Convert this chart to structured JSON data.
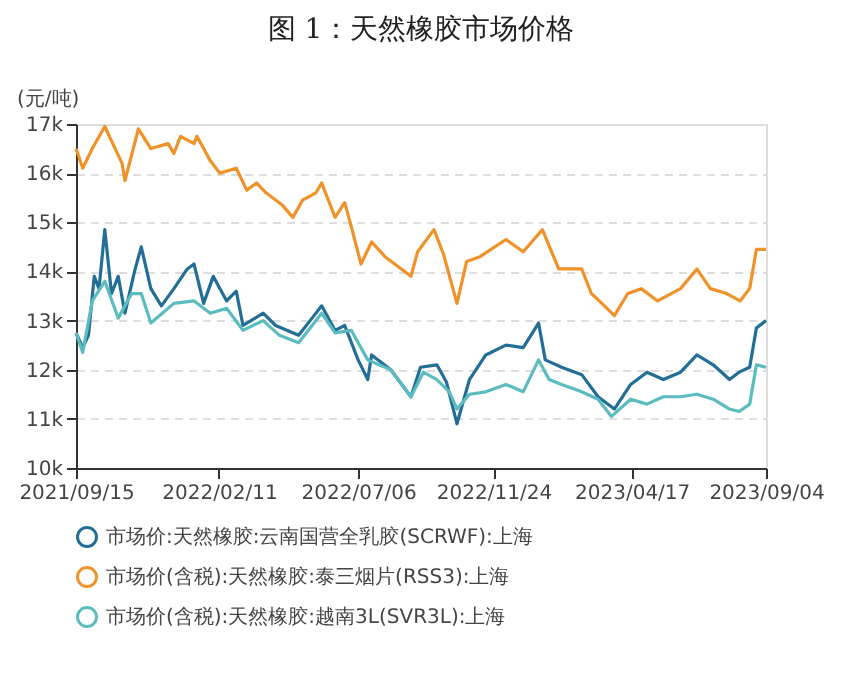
{
  "chart_data": {
    "type": "line",
    "title": "图 1：天然橡胶市场价格",
    "ylabel": "(元/吨)",
    "xlim": [
      "2021-09-15",
      "2023-09-04"
    ],
    "xticks": [
      {
        "value": "2021-09-15",
        "label": "2021/09/15"
      },
      {
        "value": "2022-02-11",
        "label": "2022/02/11"
      },
      {
        "value": "2022-07-06",
        "label": "2022/07/06"
      },
      {
        "value": "2022-11-24",
        "label": "2022/11/24"
      },
      {
        "value": "2023-04-17",
        "label": "2023/04/17"
      },
      {
        "value": "2023-09-04",
        "label": "2023/09/04"
      }
    ],
    "ylim": [
      10000,
      17000
    ],
    "yticks": [
      {
        "value": 10000,
        "label": "10k"
      },
      {
        "value": 11000,
        "label": "11k"
      },
      {
        "value": 12000,
        "label": "12k"
      },
      {
        "value": 13000,
        "label": "13k"
      },
      {
        "value": 14000,
        "label": "14k"
      },
      {
        "value": 15000,
        "label": "15k"
      },
      {
        "value": 16000,
        "label": "16k"
      },
      {
        "value": 17000,
        "label": "17k"
      }
    ],
    "grid": "y",
    "legend": "bottom",
    "marker": "none",
    "line_style": "solid",
    "series": [
      {
        "name": "市场价:天然橡胶:云南国营全乳胶(SCRWF):上海",
        "color": "#236e96",
        "x": [
          "2021-09-15",
          "2021-09-22",
          "2021-09-28",
          "2021-10-04",
          "2021-10-09",
          "2021-10-15",
          "2021-10-22",
          "2021-10-29",
          "2021-11-05",
          "2021-11-15",
          "2021-11-22",
          "2021-12-02",
          "2021-12-13",
          "2021-12-26",
          "2022-01-09",
          "2022-01-16",
          "2022-01-26",
          "2022-02-05",
          "2022-02-19",
          "2022-03-01",
          "2022-03-08",
          "2022-03-29",
          "2022-04-11",
          "2022-05-05",
          "2022-05-19",
          "2022-05-29",
          "2022-06-12",
          "2022-06-22",
          "2022-07-06",
          "2022-07-16",
          "2022-07-20",
          "2022-08-09",
          "2022-08-30",
          "2022-09-09",
          "2022-09-26",
          "2022-10-06",
          "2022-10-17",
          "2022-10-30",
          "2022-11-16",
          "2022-12-07",
          "2022-12-25",
          "2023-01-10",
          "2023-01-17",
          "2023-02-03",
          "2023-02-24",
          "2023-03-13",
          "2023-03-30",
          "2023-04-16",
          "2023-05-03",
          "2023-05-20",
          "2023-06-07",
          "2023-06-24",
          "2023-07-11",
          "2023-07-28",
          "2023-08-07",
          "2023-08-18",
          "2023-08-25",
          "2023-09-04"
        ],
        "values": [
          12750,
          12450,
          12700,
          13900,
          13650,
          14850,
          13550,
          13900,
          13150,
          14000,
          14500,
          13650,
          13300,
          13650,
          14050,
          14150,
          13350,
          13900,
          13400,
          13600,
          12900,
          13150,
          12900,
          12700,
          13050,
          13300,
          12800,
          12900,
          12200,
          11800,
          12300,
          12000,
          11450,
          12050,
          12100,
          11750,
          10900,
          11800,
          12300,
          12500,
          12450,
          12950,
          12200,
          12050,
          11900,
          11450,
          11200,
          11700,
          11950,
          11800,
          11950,
          12300,
          12100,
          11800,
          11950,
          12050,
          12850,
          13000
        ]
      },
      {
        "name": "市场价(含税):天然橡胶:泰三烟片(RSS3):上海",
        "color": "#f0922a",
        "x": [
          "2021-09-15",
          "2021-09-22",
          "2021-10-02",
          "2021-10-15",
          "2021-11-02",
          "2021-11-05",
          "2021-11-19",
          "2021-12-02",
          "2021-12-20",
          "2021-12-26",
          "2022-01-02",
          "2022-01-16",
          "2022-01-19",
          "2022-02-02",
          "2022-02-12",
          "2022-03-01",
          "2022-03-12",
          "2022-03-22",
          "2022-04-01",
          "2022-04-18",
          "2022-04-29",
          "2022-05-09",
          "2022-05-23",
          "2022-05-29",
          "2022-06-12",
          "2022-06-22",
          "2022-06-29",
          "2022-07-09",
          "2022-07-20",
          "2022-08-03",
          "2022-08-30",
          "2022-09-06",
          "2022-09-23",
          "2022-10-03",
          "2022-10-17",
          "2022-10-27",
          "2022-11-10",
          "2022-12-07",
          "2022-12-25",
          "2023-01-14",
          "2023-01-31",
          "2023-02-24",
          "2023-03-06",
          "2023-03-17",
          "2023-03-30",
          "2023-04-13",
          "2023-04-27",
          "2023-05-14",
          "2023-06-07",
          "2023-06-24",
          "2023-07-08",
          "2023-07-25",
          "2023-08-08",
          "2023-08-18",
          "2023-08-25",
          "2023-09-04"
        ],
        "values": [
          16500,
          16100,
          16500,
          16950,
          16200,
          15850,
          16900,
          16500,
          16600,
          16400,
          16750,
          16600,
          16750,
          16250,
          16000,
          16100,
          15650,
          15800,
          15600,
          15350,
          15100,
          15450,
          15600,
          15800,
          15100,
          15400,
          14900,
          14150,
          14600,
          14300,
          13900,
          14400,
          14850,
          14350,
          13350,
          14200,
          14300,
          14650,
          14400,
          14850,
          14050,
          14050,
          13550,
          13350,
          13100,
          13550,
          13650,
          13400,
          13650,
          14050,
          13650,
          13550,
          13400,
          13650,
          14450,
          14450
        ]
      },
      {
        "name": "市场价(含税):天然橡胶:越南3L(SVR3L):上海",
        "color": "#5bbcbf",
        "x": [
          "2021-09-15",
          "2021-09-22",
          "2021-10-02",
          "2021-10-15",
          "2021-10-29",
          "2021-11-12",
          "2021-11-22",
          "2021-12-02",
          "2021-12-26",
          "2022-01-16",
          "2022-02-02",
          "2022-02-19",
          "2022-03-08",
          "2022-03-29",
          "2022-04-15",
          "2022-05-05",
          "2022-05-29",
          "2022-06-12",
          "2022-06-29",
          "2022-07-16",
          "2022-08-09",
          "2022-08-30",
          "2022-09-12",
          "2022-09-26",
          "2022-10-09",
          "2022-10-17",
          "2022-10-30",
          "2022-11-16",
          "2022-12-07",
          "2022-12-25",
          "2023-01-10",
          "2023-01-21",
          "2023-02-03",
          "2023-02-24",
          "2023-03-13",
          "2023-03-27",
          "2023-04-16",
          "2023-05-03",
          "2023-05-20",
          "2023-06-07",
          "2023-06-24",
          "2023-07-11",
          "2023-07-28",
          "2023-08-07",
          "2023-08-18",
          "2023-08-25",
          "2023-09-04"
        ],
        "values": [
          12750,
          12350,
          13400,
          13800,
          13050,
          13550,
          13550,
          12950,
          13350,
          13400,
          13150,
          13250,
          12800,
          13000,
          12700,
          12550,
          13150,
          12750,
          12800,
          12200,
          12000,
          11450,
          11950,
          11800,
          11550,
          11200,
          11500,
          11550,
          11700,
          11550,
          12200,
          11800,
          11700,
          11550,
          11400,
          11050,
          11400,
          11300,
          11450,
          11450,
          11500,
          11400,
          11200,
          11150,
          11300,
          12100,
          12050
        ]
      }
    ]
  }
}
